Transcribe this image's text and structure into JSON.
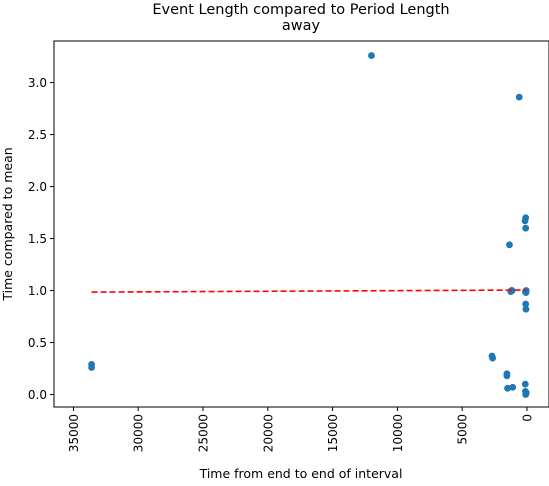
{
  "chart_data": {
    "type": "scatter",
    "title_lines": [
      "Event Length compared to Period Length",
      "away"
    ],
    "xlabel": "Time from end to end of interval",
    "ylabel": "Time compared to mean",
    "x_inverted": true,
    "xlim": [
      36500,
      -1700
    ],
    "ylim": [
      -0.12,
      3.4
    ],
    "x_ticks": [
      35000,
      30000,
      25000,
      20000,
      15000,
      10000,
      5000,
      0
    ],
    "x_tick_labels": [
      "35000",
      "30000",
      "25000",
      "20000",
      "15000",
      "10000",
      "5000",
      "0"
    ],
    "y_ticks": [
      0.0,
      0.5,
      1.0,
      1.5,
      2.0,
      2.5,
      3.0
    ],
    "y_tick_labels": [
      "0.0",
      "0.5",
      "1.0",
      "1.5",
      "2.0",
      "2.5",
      "3.0"
    ],
    "grid": false,
    "series": [
      {
        "kind": "points",
        "color": "#1f77b4",
        "x": [
          33600,
          33600,
          12000,
          600,
          2700,
          2650,
          1550,
          1550,
          1500,
          1100,
          1200,
          1250,
          1150,
          100,
          150,
          100,
          120,
          80,
          60,
          100,
          80,
          130,
          120,
          60,
          100,
          80,
          1350
        ],
        "y": [
          0.29,
          0.26,
          3.26,
          2.86,
          0.37,
          0.35,
          0.2,
          0.18,
          0.06,
          0.07,
          1.0,
          0.99,
          1.0,
          1.7,
          1.67,
          1.6,
          0.99,
          0.98,
          1.0,
          0.87,
          0.82,
          0.1,
          0.03,
          0.02,
          0.0,
          0.01,
          1.44
        ]
      },
      {
        "kind": "trend-line",
        "color": "#ff0000",
        "dash": "dashed",
        "x": [
          33600,
          60
        ],
        "y": [
          0.985,
          1.005
        ]
      }
    ]
  }
}
